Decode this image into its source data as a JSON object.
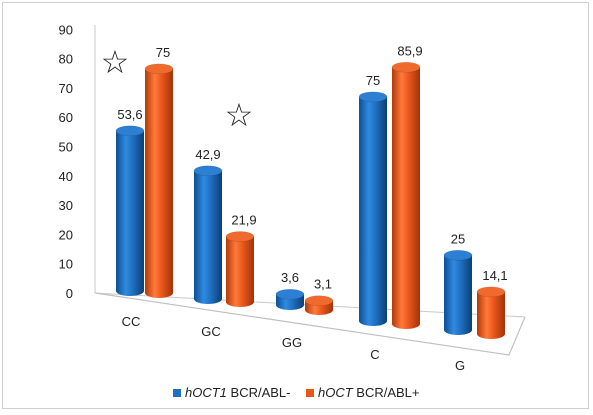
{
  "chart_data": {
    "type": "bar",
    "style": "3d-cylinder",
    "title": "",
    "xlabel": "",
    "ylabel": "",
    "ylim": [
      0,
      90
    ],
    "yticks": [
      "0",
      "10",
      "20",
      "30",
      "40",
      "50",
      "60",
      "70",
      "80",
      "90"
    ],
    "grid": false,
    "categories": [
      "CC",
      "GC",
      "GG",
      "C",
      "G"
    ],
    "series": [
      {
        "name_italic": "hOCT1",
        "name_rest": " BCR/ABL-",
        "color": "#1f6fbf",
        "values": [
          53.6,
          42.9,
          3.6,
          75,
          25
        ],
        "labels": [
          "53,6",
          "42,9",
          "3,6",
          "75",
          "25"
        ]
      },
      {
        "name_italic": "hOCT",
        "name_rest": " BCR/ABL+",
        "color": "#e8561c",
        "values": [
          75,
          21.9,
          3.1,
          85.9,
          14.1
        ],
        "labels": [
          "75",
          "21,9",
          "3,1",
          "85,9",
          "14,1"
        ]
      }
    ],
    "annotations": [
      {
        "symbol": "☆",
        "category": "CC"
      },
      {
        "symbol": "☆",
        "category": "GC"
      }
    ],
    "legend_position": "bottom"
  }
}
